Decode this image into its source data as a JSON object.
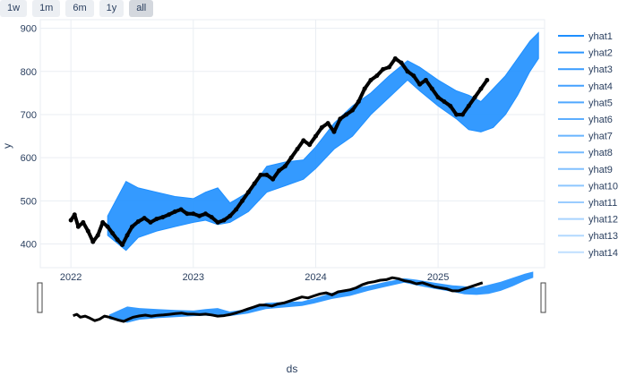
{
  "range_selector": {
    "buttons": [
      "1w",
      "1m",
      "6m",
      "1y",
      "all"
    ],
    "active": "all"
  },
  "colors": {
    "band": "#1e8fff",
    "actual": "#000000",
    "grid": "#eaeef3",
    "legend_line": "#1f77b4"
  },
  "chart_data": {
    "type": "line",
    "xlabel": "ds",
    "ylabel": "y",
    "xlim": [
      2021.75,
      2025.87
    ],
    "ylim": [
      345,
      920
    ],
    "x_ticks": [
      2022,
      2023,
      2024,
      2025
    ],
    "x_tick_labels": [
      "2022",
      "2023",
      "2024",
      "2025"
    ],
    "y_ticks": [
      400,
      500,
      600,
      700,
      800,
      900
    ],
    "y_tick_labels": [
      "400",
      "500",
      "600",
      "700",
      "800",
      "900"
    ],
    "grid": true,
    "legend_position": "right",
    "series": [
      {
        "name": "yhat1"
      },
      {
        "name": "yhat2"
      },
      {
        "name": "yhat3"
      },
      {
        "name": "yhat4"
      },
      {
        "name": "yhat5"
      },
      {
        "name": "yhat6"
      },
      {
        "name": "yhat7"
      },
      {
        "name": "yhat8"
      },
      {
        "name": "yhat9"
      },
      {
        "name": "yhat10"
      },
      {
        "name": "yhat11"
      },
      {
        "name": "yhat12"
      },
      {
        "name": "yhat13"
      },
      {
        "name": "yhat14"
      }
    ],
    "forecast_band": {
      "x": [
        2022.3,
        2022.45,
        2022.55,
        2022.7,
        2022.85,
        2023.0,
        2023.1,
        2023.2,
        2023.3,
        2023.45,
        2023.6,
        2023.75,
        2023.9,
        2024.0,
        2024.15,
        2024.3,
        2024.45,
        2024.6,
        2024.75,
        2024.85,
        2025.0,
        2025.15,
        2025.25,
        2025.35,
        2025.45,
        2025.55,
        2025.65,
        2025.75,
        2025.82
      ],
      "upper": [
        465,
        545,
        530,
        520,
        510,
        505,
        520,
        530,
        495,
        520,
        580,
        590,
        595,
        625,
        680,
        720,
        750,
        790,
        825,
        810,
        780,
        755,
        745,
        730,
        760,
        790,
        830,
        870,
        890
      ],
      "lower": [
        420,
        385,
        415,
        430,
        440,
        450,
        455,
        445,
        450,
        475,
        520,
        535,
        550,
        575,
        620,
        650,
        700,
        740,
        780,
        755,
        720,
        690,
        665,
        660,
        670,
        700,
        745,
        800,
        830
      ]
    },
    "actual": {
      "x": [
        2022.0,
        2022.03,
        2022.06,
        2022.1,
        2022.14,
        2022.18,
        2022.22,
        2022.26,
        2022.3,
        2022.34,
        2022.38,
        2022.42,
        2022.46,
        2022.5,
        2022.55,
        2022.6,
        2022.65,
        2022.7,
        2022.75,
        2022.8,
        2022.85,
        2022.9,
        2022.95,
        2023.0,
        2023.05,
        2023.1,
        2023.15,
        2023.2,
        2023.25,
        2023.3,
        2023.35,
        2023.4,
        2023.45,
        2023.5,
        2023.55,
        2023.6,
        2023.65,
        2023.7,
        2023.75,
        2023.8,
        2023.85,
        2023.9,
        2023.95,
        2024.0,
        2024.05,
        2024.1,
        2024.15,
        2024.2,
        2024.25,
        2024.3,
        2024.35,
        2024.4,
        2024.45,
        2024.5,
        2024.55,
        2024.6,
        2024.65,
        2024.7,
        2024.75,
        2024.8,
        2024.85,
        2024.9,
        2024.95,
        2025.0,
        2025.05,
        2025.1,
        2025.15,
        2025.2,
        2025.25,
        2025.3,
        2025.35,
        2025.4
      ],
      "y": [
        455,
        468,
        440,
        450,
        430,
        405,
        420,
        450,
        440,
        425,
        410,
        398,
        420,
        440,
        452,
        460,
        450,
        458,
        462,
        468,
        475,
        480,
        470,
        470,
        465,
        470,
        462,
        450,
        455,
        465,
        480,
        500,
        520,
        540,
        560,
        560,
        550,
        570,
        580,
        600,
        620,
        640,
        630,
        650,
        670,
        680,
        660,
        690,
        700,
        710,
        730,
        760,
        780,
        790,
        805,
        810,
        830,
        820,
        800,
        790,
        770,
        780,
        760,
        740,
        730,
        720,
        700,
        700,
        720,
        740,
        760,
        780
      ]
    }
  }
}
